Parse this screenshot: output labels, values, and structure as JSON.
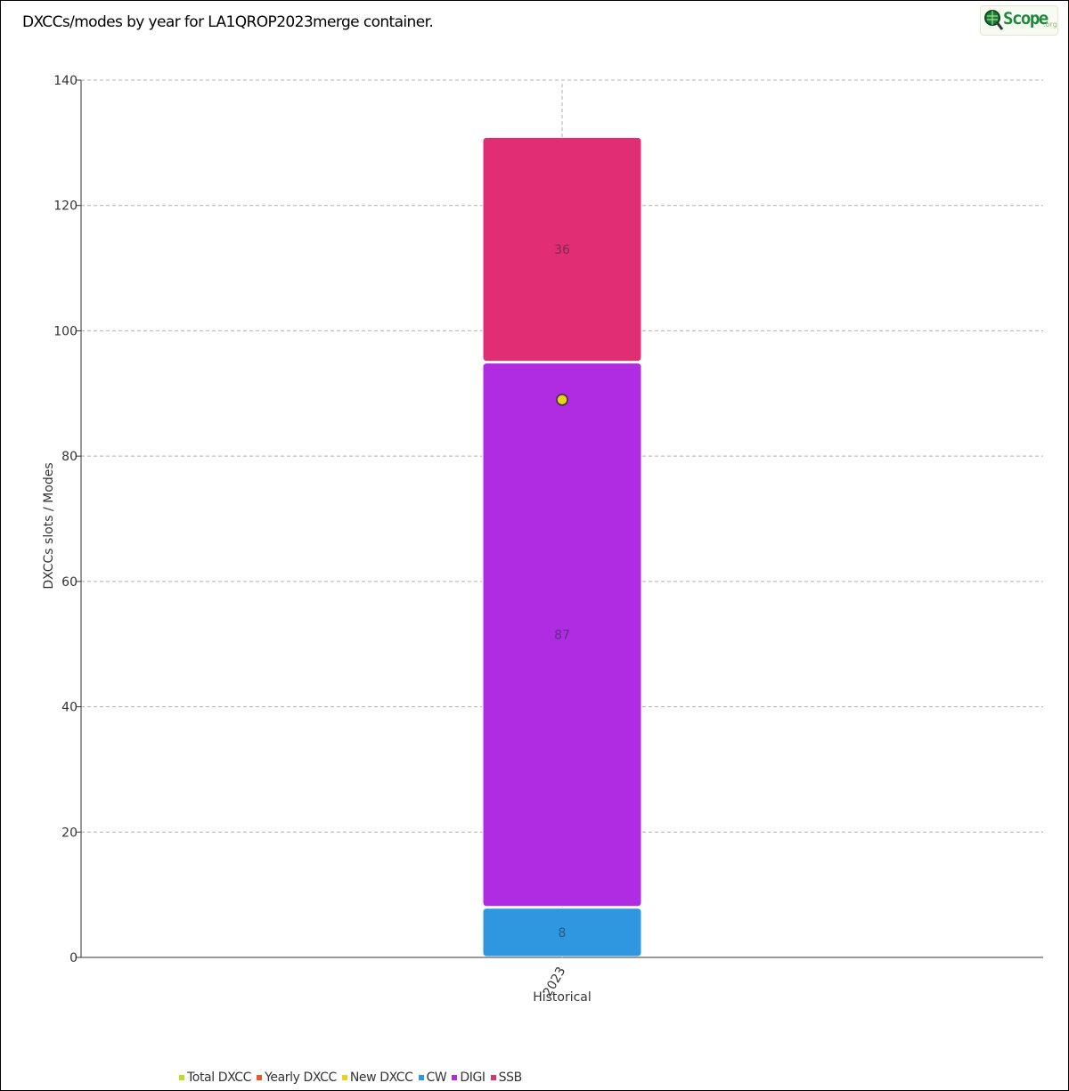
{
  "title": "DXCCs/modes by year for LA1QROP2023merge container.",
  "logo": {
    "text": "Scope",
    "sub": ".org"
  },
  "colors": {
    "total_dxcc": "#b8e01e",
    "yearly_dxcc": "#e8562a",
    "new_dxcc": "#e8d41e",
    "cw": "#2e97e0",
    "digi": "#b02ce3",
    "ssb": "#e12e72",
    "point_fill": "#e8d41e"
  },
  "chart_data": {
    "type": "bar",
    "stacked": true,
    "categories": [
      "2023"
    ],
    "xlabel": "Historical",
    "ylabel": "DXCCs slots / Modes",
    "ylim": [
      0,
      140
    ],
    "yticks": [
      0,
      20,
      40,
      60,
      80,
      100,
      120,
      140
    ],
    "grid": true,
    "legend_position": "bottom-left",
    "series": [
      {
        "name": "Total DXCC",
        "type": "marker",
        "values": [
          null
        ]
      },
      {
        "name": "Yearly DXCC",
        "type": "marker",
        "values": [
          null
        ]
      },
      {
        "name": "New DXCC",
        "type": "point",
        "values": [
          89
        ]
      },
      {
        "name": "CW",
        "type": "bar",
        "values": [
          8
        ]
      },
      {
        "name": "DIGI",
        "type": "bar",
        "values": [
          87
        ]
      },
      {
        "name": "SSB",
        "type": "bar",
        "values": [
          36
        ]
      }
    ]
  }
}
